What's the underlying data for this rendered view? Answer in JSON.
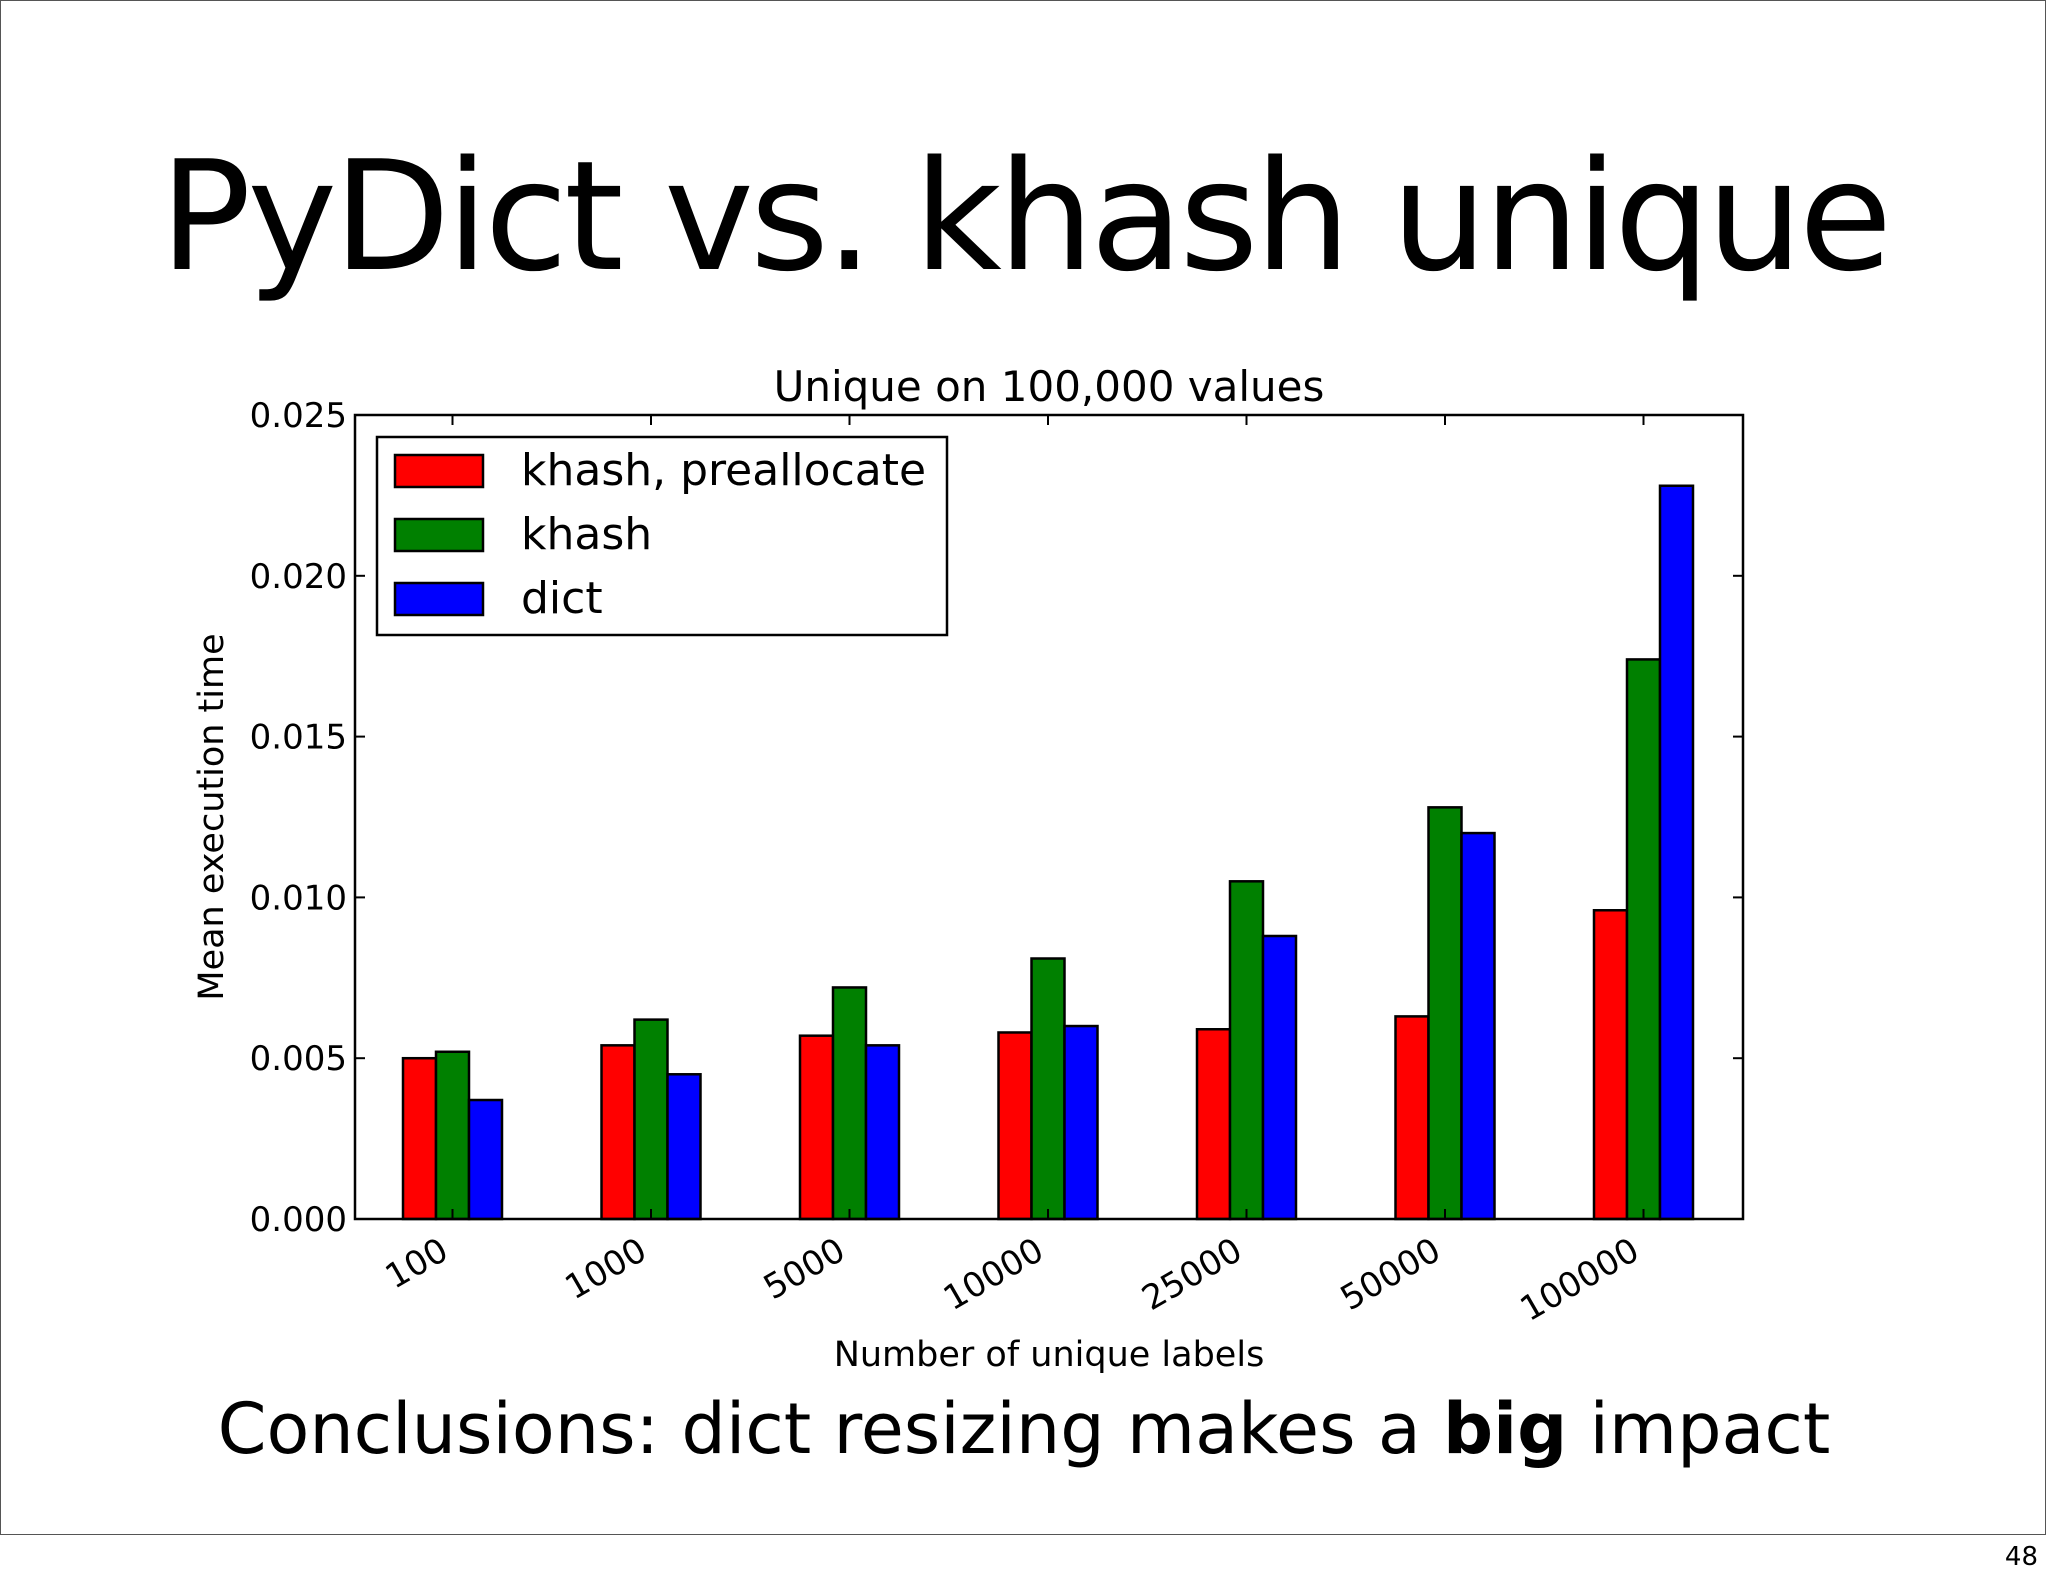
{
  "slide": {
    "title": "PyDict vs. khash unique",
    "conclusion_pre": "Conclusions: dict resizing makes a ",
    "conclusion_bold": "big",
    "conclusion_post": " impact",
    "page_number": "48"
  },
  "chart_data": {
    "type": "bar",
    "title": "Unique on 100,000 values",
    "xlabel": "Number of unique labels",
    "ylabel": "Mean execution time",
    "categories": [
      "100",
      "1000",
      "5000",
      "10000",
      "25000",
      "50000",
      "100000"
    ],
    "series": [
      {
        "name": "khash, preallocate",
        "color": "#ff0000",
        "values": [
          0.005,
          0.0054,
          0.0057,
          0.0058,
          0.0059,
          0.0063,
          0.0096
        ]
      },
      {
        "name": "khash",
        "color": "#008000",
        "values": [
          0.0052,
          0.0062,
          0.0072,
          0.0081,
          0.0105,
          0.0128,
          0.0174
        ]
      },
      {
        "name": "dict",
        "color": "#0000ff",
        "values": [
          0.0037,
          0.0045,
          0.0054,
          0.006,
          0.0088,
          0.012,
          0.0228
        ]
      }
    ],
    "ylim": [
      0,
      0.025
    ],
    "yticks": [
      "0.000",
      "0.005",
      "0.010",
      "0.015",
      "0.020",
      "0.025"
    ],
    "legend_position": "top-left",
    "grid": false
  }
}
